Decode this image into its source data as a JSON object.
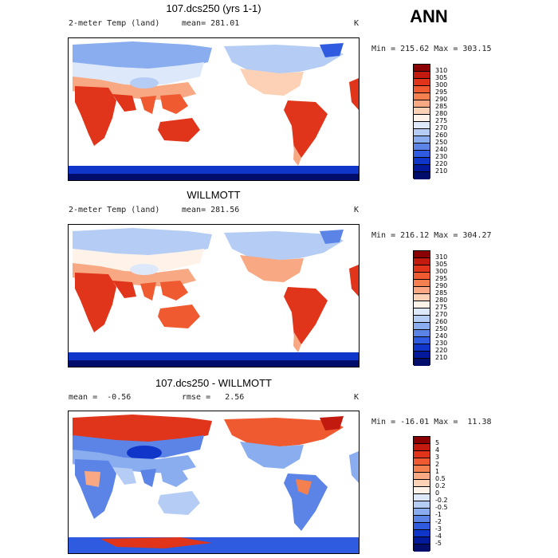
{
  "season": "ANN",
  "panels": [
    {
      "title": "107.dcs250 (yrs 1-1)",
      "left_label": "2-meter Temp (land)",
      "stat_label": "mean= 281.01",
      "units": "K",
      "minmax": "Min = 215.62 Max = 303.15",
      "field": "model"
    },
    {
      "title": "WILLMOTT",
      "left_label": "2-meter Temp (land)",
      "stat_label": "mean= 281.56",
      "units": "K",
      "minmax": "Min = 216.12 Max = 304.27",
      "field": "obs"
    },
    {
      "title": "107.dcs250 - WILLMOTT",
      "left_label": "mean =  -0.56",
      "stat_label": "rmse =   2.56",
      "units": "K",
      "minmax": "Min = -16.01 Max =  11.38",
      "field": "diff"
    }
  ],
  "colorbars": {
    "temperature": {
      "labels": [
        "310",
        "305",
        "300",
        "295",
        "290",
        "285",
        "280",
        "275",
        "270",
        "260",
        "250",
        "240",
        "230",
        "220",
        "210"
      ],
      "colors": [
        "#8b0000",
        "#c21a0f",
        "#e0341b",
        "#ef5a30",
        "#f4804f",
        "#f8a882",
        "#fcd1b5",
        "#fff3e9",
        "#dde9fb",
        "#b5cdf5",
        "#89adee",
        "#5b84e6",
        "#2f5be0",
        "#1035c9",
        "#001a9b",
        "#000d6b"
      ]
    },
    "difference": {
      "labels": [
        "5",
        "4",
        "3",
        "2",
        "1",
        "0.5",
        "0.2",
        "0",
        "-0.2",
        "-0.5",
        "-1",
        "-2",
        "-3",
        "-4",
        "-5"
      ],
      "colors": [
        "#8b0000",
        "#c21a0f",
        "#e0341b",
        "#ef5a30",
        "#f4804f",
        "#f8a882",
        "#fcd1b5",
        "#fff3e9",
        "#dde9fb",
        "#b5cdf5",
        "#89adee",
        "#5b84e6",
        "#2f5be0",
        "#1035c9",
        "#001a9b",
        "#000d6b"
      ]
    }
  }
}
